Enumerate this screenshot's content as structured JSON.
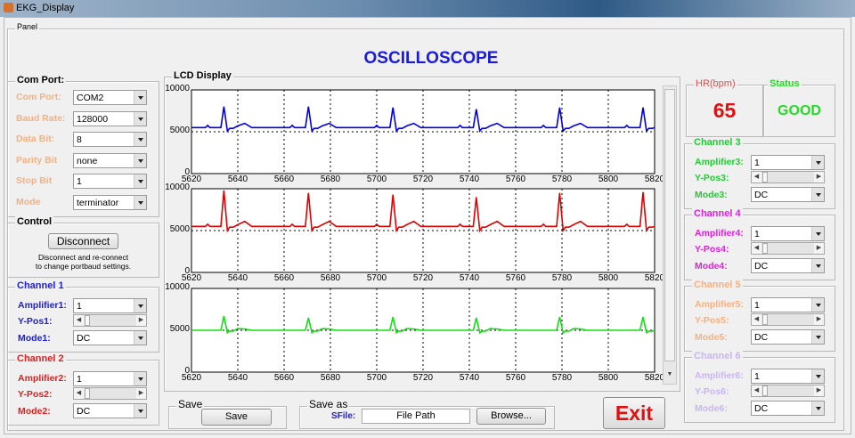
{
  "window": {
    "title": "EKG_Display"
  },
  "panel": {
    "label": "Panel",
    "title": "OSCILLOSCOPE"
  },
  "com_port": {
    "label": "Com Port:",
    "fields": [
      {
        "label": "Com Port:",
        "value": "COM2"
      },
      {
        "label": "Baud Rate:",
        "value": "128000"
      },
      {
        "label": "Data Bit:",
        "value": "8"
      },
      {
        "label": "Parity Bit",
        "value": "none"
      },
      {
        "label": "Stop Bit",
        "value": "1"
      },
      {
        "label": "Mode",
        "value": "terminator"
      }
    ],
    "color": "#f4b183"
  },
  "control": {
    "label": "Control",
    "button": "Disconnect",
    "hint1": "Disconnect and re-connect",
    "hint2": "to change portbaud settings."
  },
  "channels": [
    {
      "title": "Channel 1",
      "amp_label": "Amplifier1:",
      "amp": "1",
      "ypos_label": "Y-Pos1:",
      "mode_label": "Mode1:",
      "mode": "DC",
      "color": "#2020d0"
    },
    {
      "title": "Channel 2",
      "amp_label": "Amplifier2:",
      "amp": "1",
      "ypos_label": "Y-Pos2:",
      "mode_label": "Mode2:",
      "mode": "DC",
      "color": "#e02020"
    },
    {
      "title": "Channel 3",
      "amp_label": "Amplifier3:",
      "amp": "1",
      "ypos_label": "Y-Pos3:",
      "mode_label": "Mode3:",
      "mode": "DC",
      "color": "#22cc33"
    },
    {
      "title": "Channel 4",
      "amp_label": "Amplifier4:",
      "amp": "1",
      "ypos_label": "Y-Pos4:",
      "mode_label": "Mode4:",
      "mode": "DC",
      "color": "#e020e0"
    },
    {
      "title": "Channel 5",
      "amp_label": "Amplifier5:",
      "amp": "1",
      "ypos_label": "Y-Pos5:",
      "mode_label": "Mode5:",
      "mode": "DC",
      "color": "#f4b183"
    },
    {
      "title": "Channel 6",
      "amp_label": "Amplifier6:",
      "amp": "1",
      "ypos_label": "Y-Pos6:",
      "mode_label": "Mode6:",
      "mode": "DC",
      "color": "#c9b6f0"
    }
  ],
  "lcd": {
    "label": "LCD Display"
  },
  "hr": {
    "label": "HR(bpm)",
    "value": "65",
    "color": "#e01010"
  },
  "status": {
    "label": "Status",
    "value": "GOOD",
    "color": "#22dd22"
  },
  "save": {
    "label": "Save",
    "button": "Save"
  },
  "save_as": {
    "label": "Save as",
    "field_label": "SFile:",
    "path": "File Path",
    "browse": "Browse..."
  },
  "exit": {
    "label": "Exit"
  },
  "chart_data": [
    {
      "type": "line",
      "series": [
        {
          "color": "#0000e0",
          "baseline": 5500,
          "r_peak": [
            8000,
            8000,
            7900,
            7700,
            7900,
            7900
          ],
          "s_dip": 5100,
          "t_peak": 6000,
          "p_peak": 5750
        }
      ],
      "beats": [
        5634,
        5670.5,
        5707,
        5743,
        5779,
        5815
      ],
      "xlim": [
        5620,
        5820
      ],
      "ylim": [
        0,
        10000
      ],
      "xticks": [
        "5620",
        "5640",
        "5660",
        "5680",
        "5700",
        "5720",
        "5740",
        "5760",
        "5780",
        "5800",
        "5820"
      ],
      "yticks": [
        "0",
        "5000",
        "10000"
      ],
      "grid": true
    },
    {
      "type": "line",
      "series": [
        {
          "color": "#e00000",
          "baseline": 5500,
          "r_peak": [
            9800,
            9500,
            9300,
            9000,
            9500,
            9600
          ],
          "s_dip": 5000,
          "t_peak": 6100,
          "p_peak": 5750
        }
      ],
      "beats": [
        5634,
        5670.5,
        5707,
        5743,
        5779,
        5815
      ],
      "xlim": [
        5620,
        5820
      ],
      "ylim": [
        0,
        10000
      ],
      "xticks": [
        "5620",
        "5640",
        "5660",
        "5680",
        "5700",
        "5720",
        "5740",
        "5760",
        "5780",
        "5800",
        "5820"
      ],
      "yticks": [
        "0",
        "5000",
        "10000"
      ],
      "grid": true
    },
    {
      "type": "line",
      "series": [
        {
          "color": "#10e010",
          "baseline": 5000,
          "r_peak": [
            6700,
            6500,
            6600,
            6500,
            6600,
            6600
          ],
          "s_dip": 4700,
          "t_peak": 5150,
          "p_peak": 5000
        }
      ],
      "beats": [
        5634,
        5670.5,
        5707,
        5743,
        5779,
        5815
      ],
      "xlim": [
        5620,
        5820
      ],
      "ylim": [
        0,
        10000
      ],
      "xticks": [
        "5620",
        "5640",
        "5660",
        "5680",
        "5700",
        "5720",
        "5740",
        "5760",
        "5780",
        "5800",
        "5820"
      ],
      "yticks": [
        "0",
        "5000",
        "10000"
      ],
      "grid": true
    }
  ]
}
